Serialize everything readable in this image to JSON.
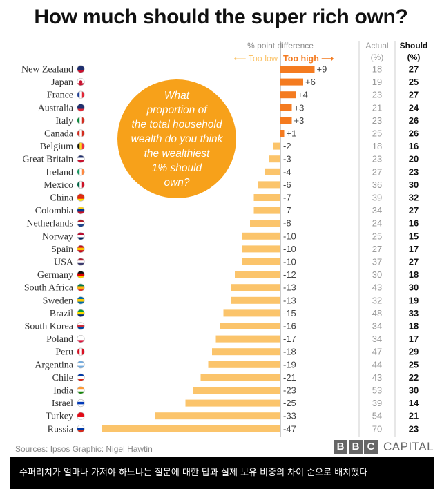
{
  "title": "How much should the super rich own?",
  "chart_data": {
    "type": "bar",
    "title": "How much should the super rich own?",
    "xlabel": "% point difference",
    "direction_low": "⟵ Too low",
    "direction_high": "Too high ⟶",
    "actual_header_1": "Actual",
    "actual_header_2": "(%)",
    "should_header_1": "Should",
    "should_header_2": "(%)",
    "annotation": [
      "What",
      "proportion of",
      "the total household",
      "wealth do you think",
      "the wealthiest",
      "1% should",
      "own?"
    ],
    "categories": [
      "New Zealand",
      "Japan",
      "France",
      "Australia",
      "Italy",
      "Canada",
      "Belgium",
      "Great Britain",
      "Ireland",
      "Mexico",
      "China",
      "Colombia",
      "Netherlands",
      "Norway",
      "Spain",
      "USA",
      "Germany",
      "South Africa",
      "Sweden",
      "Brazil",
      "South Korea",
      "Poland",
      "Peru",
      "Argentina",
      "Chile",
      "India",
      "Israel",
      "Turkey",
      "Russia"
    ],
    "value_labels": [
      "+9",
      "+6",
      "+4",
      "+3",
      "+3",
      "+1",
      "-2",
      "-3",
      "-4",
      "-6",
      "-7",
      "-7",
      "-8",
      "-10",
      "-10",
      "-10",
      "-12",
      "-13",
      "-13",
      "-15",
      "-16",
      "-17",
      "-18",
      "-19",
      "-21",
      "-23",
      "-25",
      "-33",
      "-47"
    ],
    "values": [
      9,
      6,
      4,
      3,
      3,
      1,
      -2,
      -3,
      -4,
      -6,
      -7,
      -7,
      -8,
      -10,
      -10,
      -10,
      -12,
      -13,
      -13,
      -15,
      -16,
      -17,
      -18,
      -19,
      -21,
      -23,
      -25,
      -33,
      -47
    ],
    "actual": [
      "18",
      "19",
      "23",
      "21",
      "23",
      "25",
      "18",
      "23",
      "27",
      "36",
      "39",
      "34",
      "24",
      "25",
      "27",
      "37",
      "30",
      "43",
      "32",
      "48",
      "34",
      "34",
      "47",
      "44",
      "43",
      "53",
      "39",
      "54",
      "70"
    ],
    "should": [
      "27",
      "25",
      "27",
      "24",
      "26",
      "26",
      "16",
      "20",
      "23",
      "30",
      "32",
      "27",
      "16",
      "15",
      "17",
      "27",
      "18",
      "30",
      "19",
      "33",
      "18",
      "17",
      "29",
      "25",
      "22",
      "30",
      "14",
      "21",
      "23"
    ],
    "flags": [
      "new-zealand-flag",
      "japan-flag",
      "france-flag",
      "australia-flag",
      "italy-flag",
      "canada-flag",
      "belgium-flag",
      "great-britain-flag",
      "ireland-flag",
      "mexico-flag",
      "china-flag",
      "colombia-flag",
      "netherlands-flag",
      "norway-flag",
      "spain-flag",
      "usa-flag",
      "germany-flag",
      "south-africa-flag",
      "sweden-flag",
      "brazil-flag",
      "south-korea-flag",
      "poland-flag",
      "peru-flag",
      "argentina-flag",
      "chile-flag",
      "india-flag",
      "israel-flag",
      "turkey-flag",
      "russia-flag"
    ],
    "colors": {
      "positive": "#f47b20",
      "negative": "#fbc46b",
      "bubble": "#f7a11a",
      "axis": "#9a9a9a"
    }
  },
  "sources": "Sources: Ipsos   Graphic: Nigel Hawtin",
  "brand": {
    "b1": "B",
    "b2": "B",
    "b3": "C",
    "capital": "CAPITAL"
  },
  "caption": "수퍼리치가 얼마나 가져야 하느냐는 질문에 대한 답과 실제 보유 비중의 차이 순으로 배치했다"
}
